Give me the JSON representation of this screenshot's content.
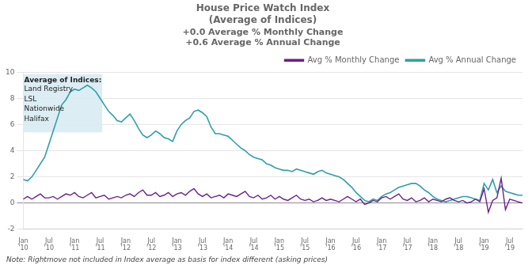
{
  "chart_data": {
    "type": "line",
    "title": "House Price Watch Index\n(Average of Indices)",
    "subtitle": "+0.0 Average % Monthly Change\n+0.6 Average % Annual Change",
    "annotations": [
      "Average of Indices:",
      "Land Registry",
      "LSL",
      "Nationwide",
      "Halifax"
    ],
    "note": "Note: Rightmove not included in Index average as basis for index different (asking prices)",
    "categories": [
      "Jan\n'10",
      null,
      null,
      null,
      null,
      null,
      "Jul\n'10",
      null,
      null,
      null,
      null,
      null,
      "Jan\n'11",
      null,
      null,
      null,
      null,
      null,
      "Jul\n'11",
      null,
      null,
      null,
      null,
      null,
      "Jan\n'12",
      null,
      null,
      null,
      null,
      null,
      "Jul\n'12",
      null,
      null,
      null,
      null,
      null,
      "Jan\n'13",
      null,
      null,
      null,
      null,
      null,
      "Jul\n'13",
      null,
      null,
      null,
      null,
      null,
      "Jan\n'14",
      null,
      null,
      null,
      null,
      null,
      "Jul\n'14",
      null,
      null,
      null,
      null,
      null,
      "Jan\n'15",
      null,
      null,
      null,
      null,
      null,
      "Jul\n'15",
      null,
      null,
      null,
      null,
      null,
      "Jan\n'16",
      null,
      null,
      null,
      null,
      null,
      "Jul\n'16",
      null,
      null,
      null,
      null,
      null,
      "Jan\n'17",
      null,
      null,
      null,
      null,
      null,
      "Jul\n'17",
      null,
      null,
      null,
      null,
      null,
      "Jan\n'18",
      null,
      null,
      null,
      null,
      null,
      "Jul\n'18",
      null,
      null,
      null,
      null,
      null,
      "Jan\n'19",
      null,
      null,
      null,
      null,
      null,
      "Jul\n'19",
      null,
      null,
      null
    ],
    "series": [
      {
        "name": "Avg % Monthly Change",
        "color": "#6B1E8E",
        "values": [
          0.3,
          0.5,
          0.3,
          0.5,
          0.7,
          0.4,
          0.4,
          0.5,
          0.3,
          0.5,
          0.7,
          0.6,
          0.8,
          0.5,
          0.4,
          0.6,
          0.8,
          0.4,
          0.5,
          0.6,
          0.3,
          0.4,
          0.5,
          0.4,
          0.6,
          0.7,
          0.5,
          0.8,
          1.0,
          0.6,
          0.6,
          0.8,
          0.5,
          0.6,
          0.8,
          0.5,
          0.7,
          0.8,
          0.6,
          0.9,
          1.1,
          0.7,
          0.5,
          0.7,
          0.4,
          0.5,
          0.6,
          0.4,
          0.7,
          0.6,
          0.5,
          0.7,
          0.9,
          0.5,
          0.4,
          0.6,
          0.3,
          0.4,
          0.6,
          0.3,
          0.5,
          0.3,
          0.2,
          0.4,
          0.6,
          0.3,
          0.2,
          0.3,
          0.1,
          0.2,
          0.4,
          0.2,
          0.3,
          0.2,
          0.1,
          0.3,
          0.5,
          0.3,
          0.1,
          0.3,
          -0.1,
          0.0,
          0.2,
          0.1,
          0.4,
          0.5,
          0.3,
          0.5,
          0.7,
          0.3,
          0.2,
          0.4,
          0.1,
          0.2,
          0.4,
          0.1,
          0.3,
          0.2,
          0.1,
          0.3,
          0.4,
          0.2,
          0.1,
          0.2,
          0.0,
          0.1,
          0.3,
          0.1,
          1.1,
          -0.7,
          0.2,
          0.4,
          1.9,
          -0.5,
          0.3,
          0.2,
          0.1,
          0.0
        ]
      },
      {
        "name": "Avg % Annual Change",
        "color": "#2E9FA8",
        "values": [
          1.8,
          1.7,
          2.0,
          2.5,
          3.0,
          3.5,
          4.5,
          5.5,
          6.5,
          7.5,
          7.9,
          8.5,
          8.7,
          8.6,
          8.8,
          9.0,
          8.8,
          8.5,
          8.0,
          7.5,
          7.0,
          6.7,
          6.3,
          6.2,
          6.5,
          6.8,
          6.3,
          5.7,
          5.2,
          5.0,
          5.2,
          5.5,
          5.3,
          5.0,
          4.9,
          4.7,
          5.5,
          6.0,
          6.3,
          6.5,
          7.0,
          7.1,
          6.9,
          6.6,
          5.8,
          5.3,
          5.3,
          5.2,
          5.1,
          4.8,
          4.5,
          4.2,
          4.0,
          3.7,
          3.5,
          3.4,
          3.3,
          3.0,
          2.9,
          2.7,
          2.6,
          2.5,
          2.5,
          2.4,
          2.6,
          2.5,
          2.4,
          2.3,
          2.2,
          2.4,
          2.5,
          2.3,
          2.2,
          2.1,
          2.0,
          1.8,
          1.5,
          1.2,
          0.8,
          0.5,
          0.2,
          0.1,
          0.3,
          0.2,
          0.5,
          0.7,
          0.8,
          1.0,
          1.2,
          1.3,
          1.4,
          1.5,
          1.5,
          1.3,
          1.0,
          0.8,
          0.5,
          0.3,
          0.2,
          0.1,
          0.2,
          0.3,
          0.4,
          0.5,
          0.5,
          0.4,
          0.3,
          0.2,
          1.5,
          1.0,
          1.8,
          0.8,
          1.3,
          0.9,
          0.8,
          0.7,
          0.6,
          0.6
        ]
      }
    ],
    "ylim": [
      -2,
      10
    ],
    "yticks": [
      -2,
      0,
      2,
      4,
      6,
      8,
      10
    ],
    "grid": true,
    "legend": "upper right"
  }
}
